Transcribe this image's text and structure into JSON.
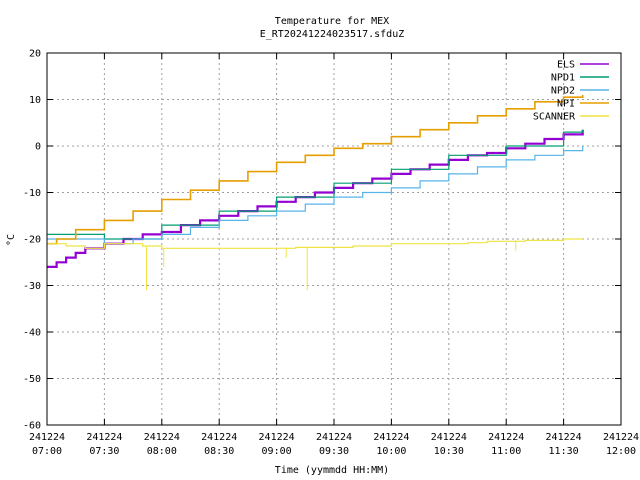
{
  "chart_data": {
    "type": "line",
    "title": "Temperature for MEX",
    "subtitle": "E_RT20241224023517.sfduZ",
    "xlabel": "Time (yymmdd HH:MM)",
    "ylabel": "°C",
    "ylim": [
      -60,
      20
    ],
    "xlim_minutes": [
      0,
      300
    ],
    "grid": true,
    "legend_position": "top-right",
    "y_ticks": [
      "20",
      "10",
      "0",
      "-10",
      "-20",
      "-30",
      "-40",
      "-50",
      "-60"
    ],
    "x_ticks": [
      {
        "date": "241224",
        "time": "07:00"
      },
      {
        "date": "241224",
        "time": "07:30"
      },
      {
        "date": "241224",
        "time": "08:00"
      },
      {
        "date": "241224",
        "time": "08:30"
      },
      {
        "date": "241224",
        "time": "09:00"
      },
      {
        "date": "241224",
        "time": "09:30"
      },
      {
        "date": "241224",
        "time": "10:00"
      },
      {
        "date": "241224",
        "time": "10:30"
      },
      {
        "date": "241224",
        "time": "11:00"
      },
      {
        "date": "241224",
        "time": "11:30"
      },
      {
        "date": "241224",
        "time": "12:00"
      }
    ],
    "series": [
      {
        "name": "ELS",
        "color": "#9400d3",
        "x": [
          "07:00",
          "07:05",
          "07:10",
          "07:15",
          "07:20",
          "07:30",
          "07:40",
          "07:50",
          "08:00",
          "08:10",
          "08:20",
          "08:30",
          "08:40",
          "08:50",
          "09:00",
          "09:10",
          "09:20",
          "09:30",
          "09:40",
          "09:50",
          "10:00",
          "10:10",
          "10:20",
          "10:30",
          "10:40",
          "10:50",
          "11:00",
          "11:10",
          "11:20",
          "11:30",
          "11:40"
        ],
        "values": [
          -26,
          -25,
          -24,
          -23,
          -22,
          -21,
          -20,
          -19,
          -18.5,
          -17,
          -16,
          -15,
          -14,
          -13,
          -12,
          -11,
          -10,
          -9,
          -8,
          -7,
          -6,
          -5,
          -4,
          -3,
          -2,
          -1.5,
          -0.5,
          0.5,
          1.5,
          2.5,
          3.5
        ]
      },
      {
        "name": "NPD1",
        "color": "#009e73",
        "x": [
          "07:00",
          "07:30",
          "08:00",
          "08:30",
          "09:00",
          "09:30",
          "10:00",
          "10:30",
          "11:00",
          "11:30",
          "11:40"
        ],
        "values": [
          -19,
          -20,
          -17,
          -14,
          -11,
          -8,
          -5,
          -2,
          0,
          3,
          3.5
        ]
      },
      {
        "name": "NPD2",
        "color": "#56b4e9",
        "x": [
          "07:00",
          "07:30",
          "07:45",
          "08:00",
          "08:15",
          "08:30",
          "08:45",
          "09:00",
          "09:15",
          "09:30",
          "09:45",
          "10:00",
          "10:15",
          "10:30",
          "10:45",
          "11:00",
          "11:15",
          "11:30",
          "11:40"
        ],
        "values": [
          -20,
          -21,
          -20,
          -19,
          -17.5,
          -16,
          -15,
          -14,
          -12.5,
          -11,
          -10,
          -9,
          -7.5,
          -6,
          -4.5,
          -3,
          -2,
          -1,
          0
        ]
      },
      {
        "name": "NPI",
        "color": "#e69f00",
        "x": [
          "07:00",
          "07:05",
          "07:15",
          "07:30",
          "07:45",
          "08:00",
          "08:15",
          "08:30",
          "08:45",
          "09:00",
          "09:15",
          "09:30",
          "09:45",
          "10:00",
          "10:15",
          "10:30",
          "10:45",
          "11:00",
          "11:15",
          "11:30",
          "11:40"
        ],
        "values": [
          -21,
          -20,
          -18,
          -16,
          -14,
          -11.5,
          -9.5,
          -7.5,
          -5.5,
          -3.5,
          -2,
          -0.5,
          0.5,
          2,
          3.5,
          5,
          6.5,
          8,
          9.5,
          10.5,
          11
        ]
      },
      {
        "name": "SCANNER",
        "color": "#f0e442",
        "x": [
          "07:00",
          "07:10",
          "07:20",
          "07:30",
          "07:40",
          "07:50",
          "08:00",
          "08:10",
          "08:20",
          "08:30",
          "08:40",
          "08:50",
          "09:00",
          "09:10",
          "09:20",
          "09:30",
          "09:40",
          "09:50",
          "10:00",
          "10:10",
          "10:20",
          "10:30",
          "10:40",
          "10:50",
          "11:00",
          "11:10",
          "11:20",
          "11:30",
          "11:40"
        ],
        "values": [
          -21,
          -21.5,
          -22,
          -21,
          -21,
          -21.5,
          -22,
          -22,
          -22,
          -22,
          -22,
          -22,
          -22,
          -21.8,
          -21.8,
          -21.8,
          -21.5,
          -21.5,
          -21,
          -21,
          -21,
          -21,
          -20.8,
          -20.5,
          -20.5,
          -20.3,
          -20.3,
          -20,
          -20
        ],
        "spikes": [
          {
            "x": "07:52",
            "value": -31
          },
          {
            "x": "08:01",
            "value": -26
          },
          {
            "x": "09:16",
            "value": -31
          },
          {
            "x": "09:05",
            "value": -24
          },
          {
            "x": "11:05",
            "value": -22.5
          }
        ]
      }
    ]
  }
}
